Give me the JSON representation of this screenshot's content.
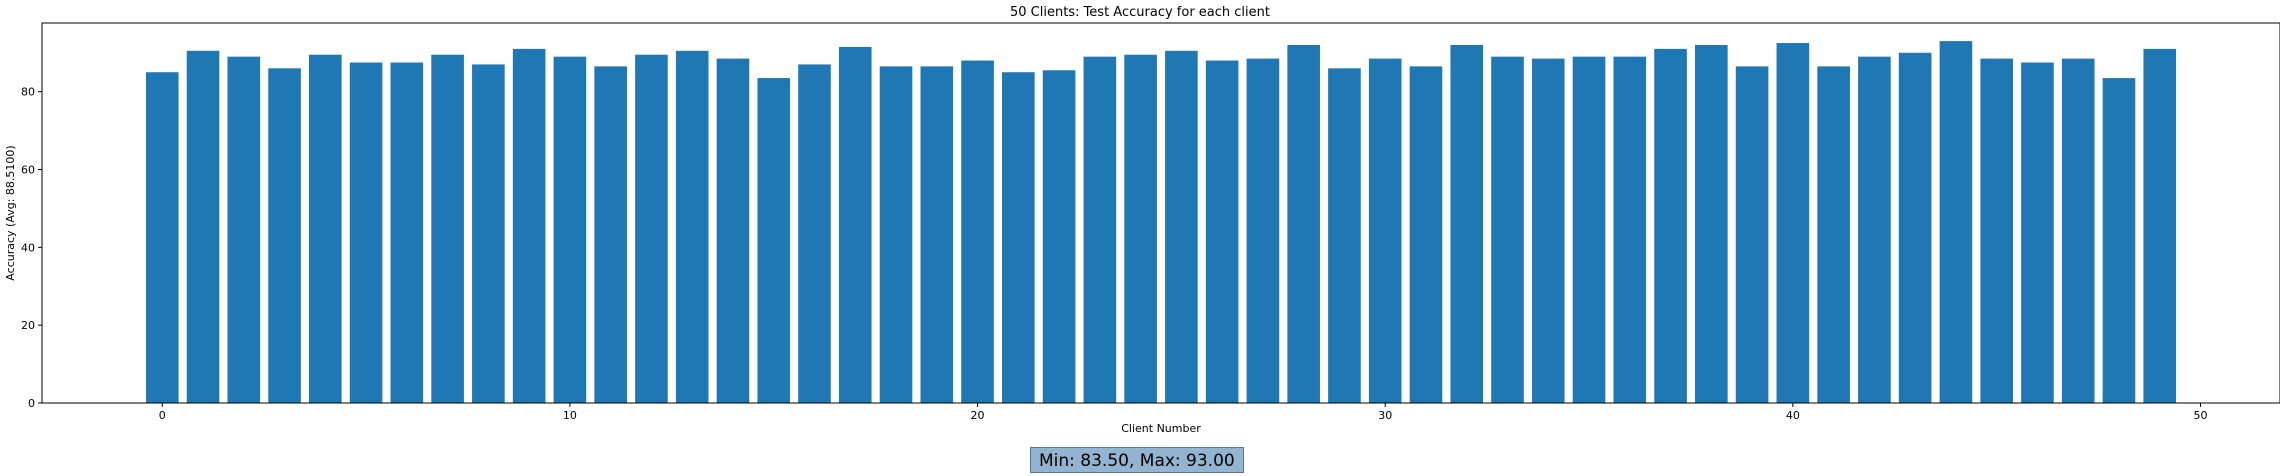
{
  "chart_data": {
    "type": "bar",
    "title": "50 Clients: Test Accuracy for each client",
    "xlabel": "Client Number",
    "ylabel": "Accuracy (Avg: 88.5100)",
    "x": [
      0,
      1,
      2,
      3,
      4,
      5,
      6,
      7,
      8,
      9,
      10,
      11,
      12,
      13,
      14,
      15,
      16,
      17,
      18,
      19,
      20,
      21,
      22,
      23,
      24,
      25,
      26,
      27,
      28,
      29,
      30,
      31,
      32,
      33,
      34,
      35,
      36,
      37,
      38,
      39,
      40,
      41,
      42,
      43,
      44,
      45,
      46,
      47,
      48,
      49
    ],
    "values": [
      85.0,
      90.5,
      89.0,
      86.0,
      89.5,
      87.5,
      87.5,
      89.5,
      87.0,
      91.0,
      89.0,
      86.5,
      89.5,
      90.5,
      88.5,
      83.5,
      87.0,
      91.5,
      86.5,
      86.5,
      88.0,
      85.0,
      85.5,
      89.0,
      89.5,
      90.5,
      88.0,
      88.5,
      92.0,
      86.0,
      88.5,
      86.5,
      92.0,
      89.0,
      88.5,
      89.0,
      89.0,
      91.0,
      92.0,
      86.5,
      92.5,
      86.5,
      89.0,
      90.0,
      93.0,
      88.5,
      87.5,
      88.5,
      83.5,
      91.0
    ],
    "xlim": [
      -2.95,
      51.95
    ],
    "ylim": [
      0,
      97.65
    ],
    "xticks": [
      0,
      10,
      20,
      30,
      40,
      50
    ],
    "yticks": [
      0,
      20,
      40,
      60,
      80
    ],
    "bar_color": "#1f77b4",
    "grid": false,
    "legend": "none"
  },
  "stats_box": {
    "text": "Min: 83.50, Max: 93.00",
    "bg_color": "#92b4d0"
  }
}
